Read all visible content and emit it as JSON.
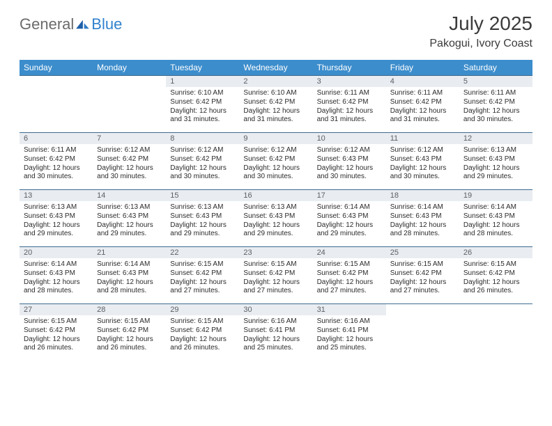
{
  "logo": {
    "word1": "General",
    "word2": "Blue"
  },
  "title": {
    "month": "July 2025",
    "location": "Pakogui, Ivory Coast"
  },
  "colors": {
    "header_bg": "#3c8dcc",
    "header_text": "#ffffff",
    "rule": "#3c6a8f",
    "daynum_bg": "#e9edf1",
    "daynum_text": "#5a5f66",
    "body_text": "#2b2b2b",
    "logo_gray": "#6b6b6b",
    "logo_blue": "#3182ce"
  },
  "day_headers": [
    "Sunday",
    "Monday",
    "Tuesday",
    "Wednesday",
    "Thursday",
    "Friday",
    "Saturday"
  ],
  "weeks": [
    [
      {
        "n": "",
        "sr": "",
        "ss": "",
        "dl": ""
      },
      {
        "n": "",
        "sr": "",
        "ss": "",
        "dl": ""
      },
      {
        "n": "1",
        "sr": "Sunrise: 6:10 AM",
        "ss": "Sunset: 6:42 PM",
        "dl": "Daylight: 12 hours and 31 minutes."
      },
      {
        "n": "2",
        "sr": "Sunrise: 6:10 AM",
        "ss": "Sunset: 6:42 PM",
        "dl": "Daylight: 12 hours and 31 minutes."
      },
      {
        "n": "3",
        "sr": "Sunrise: 6:11 AM",
        "ss": "Sunset: 6:42 PM",
        "dl": "Daylight: 12 hours and 31 minutes."
      },
      {
        "n": "4",
        "sr": "Sunrise: 6:11 AM",
        "ss": "Sunset: 6:42 PM",
        "dl": "Daylight: 12 hours and 31 minutes."
      },
      {
        "n": "5",
        "sr": "Sunrise: 6:11 AM",
        "ss": "Sunset: 6:42 PM",
        "dl": "Daylight: 12 hours and 30 minutes."
      }
    ],
    [
      {
        "n": "6",
        "sr": "Sunrise: 6:11 AM",
        "ss": "Sunset: 6:42 PM",
        "dl": "Daylight: 12 hours and 30 minutes."
      },
      {
        "n": "7",
        "sr": "Sunrise: 6:12 AM",
        "ss": "Sunset: 6:42 PM",
        "dl": "Daylight: 12 hours and 30 minutes."
      },
      {
        "n": "8",
        "sr": "Sunrise: 6:12 AM",
        "ss": "Sunset: 6:42 PM",
        "dl": "Daylight: 12 hours and 30 minutes."
      },
      {
        "n": "9",
        "sr": "Sunrise: 6:12 AM",
        "ss": "Sunset: 6:42 PM",
        "dl": "Daylight: 12 hours and 30 minutes."
      },
      {
        "n": "10",
        "sr": "Sunrise: 6:12 AM",
        "ss": "Sunset: 6:43 PM",
        "dl": "Daylight: 12 hours and 30 minutes."
      },
      {
        "n": "11",
        "sr": "Sunrise: 6:12 AM",
        "ss": "Sunset: 6:43 PM",
        "dl": "Daylight: 12 hours and 30 minutes."
      },
      {
        "n": "12",
        "sr": "Sunrise: 6:13 AM",
        "ss": "Sunset: 6:43 PM",
        "dl": "Daylight: 12 hours and 29 minutes."
      }
    ],
    [
      {
        "n": "13",
        "sr": "Sunrise: 6:13 AM",
        "ss": "Sunset: 6:43 PM",
        "dl": "Daylight: 12 hours and 29 minutes."
      },
      {
        "n": "14",
        "sr": "Sunrise: 6:13 AM",
        "ss": "Sunset: 6:43 PM",
        "dl": "Daylight: 12 hours and 29 minutes."
      },
      {
        "n": "15",
        "sr": "Sunrise: 6:13 AM",
        "ss": "Sunset: 6:43 PM",
        "dl": "Daylight: 12 hours and 29 minutes."
      },
      {
        "n": "16",
        "sr": "Sunrise: 6:13 AM",
        "ss": "Sunset: 6:43 PM",
        "dl": "Daylight: 12 hours and 29 minutes."
      },
      {
        "n": "17",
        "sr": "Sunrise: 6:14 AM",
        "ss": "Sunset: 6:43 PM",
        "dl": "Daylight: 12 hours and 29 minutes."
      },
      {
        "n": "18",
        "sr": "Sunrise: 6:14 AM",
        "ss": "Sunset: 6:43 PM",
        "dl": "Daylight: 12 hours and 28 minutes."
      },
      {
        "n": "19",
        "sr": "Sunrise: 6:14 AM",
        "ss": "Sunset: 6:43 PM",
        "dl": "Daylight: 12 hours and 28 minutes."
      }
    ],
    [
      {
        "n": "20",
        "sr": "Sunrise: 6:14 AM",
        "ss": "Sunset: 6:43 PM",
        "dl": "Daylight: 12 hours and 28 minutes."
      },
      {
        "n": "21",
        "sr": "Sunrise: 6:14 AM",
        "ss": "Sunset: 6:43 PM",
        "dl": "Daylight: 12 hours and 28 minutes."
      },
      {
        "n": "22",
        "sr": "Sunrise: 6:15 AM",
        "ss": "Sunset: 6:42 PM",
        "dl": "Daylight: 12 hours and 27 minutes."
      },
      {
        "n": "23",
        "sr": "Sunrise: 6:15 AM",
        "ss": "Sunset: 6:42 PM",
        "dl": "Daylight: 12 hours and 27 minutes."
      },
      {
        "n": "24",
        "sr": "Sunrise: 6:15 AM",
        "ss": "Sunset: 6:42 PM",
        "dl": "Daylight: 12 hours and 27 minutes."
      },
      {
        "n": "25",
        "sr": "Sunrise: 6:15 AM",
        "ss": "Sunset: 6:42 PM",
        "dl": "Daylight: 12 hours and 27 minutes."
      },
      {
        "n": "26",
        "sr": "Sunrise: 6:15 AM",
        "ss": "Sunset: 6:42 PM",
        "dl": "Daylight: 12 hours and 26 minutes."
      }
    ],
    [
      {
        "n": "27",
        "sr": "Sunrise: 6:15 AM",
        "ss": "Sunset: 6:42 PM",
        "dl": "Daylight: 12 hours and 26 minutes."
      },
      {
        "n": "28",
        "sr": "Sunrise: 6:15 AM",
        "ss": "Sunset: 6:42 PM",
        "dl": "Daylight: 12 hours and 26 minutes."
      },
      {
        "n": "29",
        "sr": "Sunrise: 6:15 AM",
        "ss": "Sunset: 6:42 PM",
        "dl": "Daylight: 12 hours and 26 minutes."
      },
      {
        "n": "30",
        "sr": "Sunrise: 6:16 AM",
        "ss": "Sunset: 6:41 PM",
        "dl": "Daylight: 12 hours and 25 minutes."
      },
      {
        "n": "31",
        "sr": "Sunrise: 6:16 AM",
        "ss": "Sunset: 6:41 PM",
        "dl": "Daylight: 12 hours and 25 minutes."
      },
      {
        "n": "",
        "sr": "",
        "ss": "",
        "dl": ""
      },
      {
        "n": "",
        "sr": "",
        "ss": "",
        "dl": ""
      }
    ]
  ]
}
